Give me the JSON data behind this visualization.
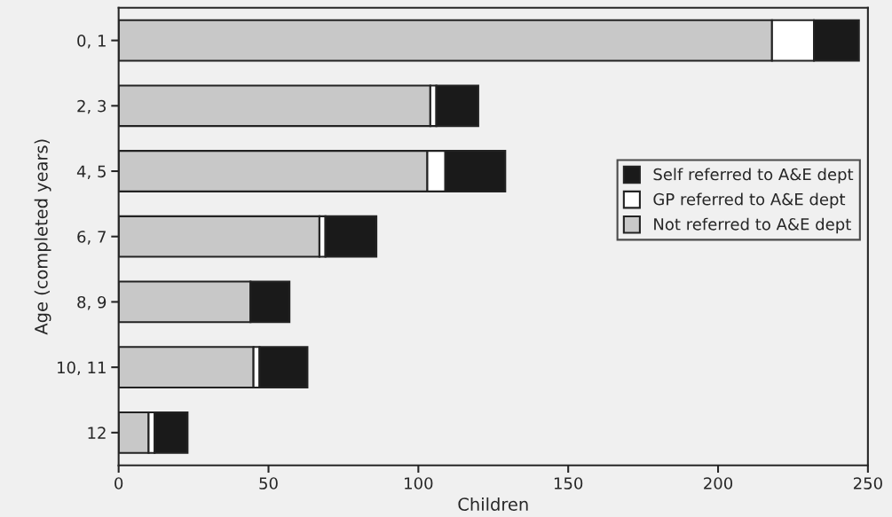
{
  "chart_data": {
    "type": "bar",
    "orientation": "horizontal",
    "stacked": true,
    "xlabel": "Children",
    "ylabel": "Age (completed years)",
    "categories": [
      "0, 1",
      "2, 3",
      "4, 5",
      "6, 7",
      "8, 9",
      "10, 11",
      "12"
    ],
    "series": [
      {
        "name": "Not referred to A&E dept",
        "color": "#c8c8c8",
        "values": [
          218,
          104,
          103,
          67,
          44,
          45,
          10
        ]
      },
      {
        "name": "GP referred to A&E dept",
        "color": "#ffffff",
        "values": [
          14,
          2,
          6,
          2,
          0,
          2,
          2
        ]
      },
      {
        "name": "Self referred to A&E dept",
        "color": "#1a1a1a",
        "values": [
          15,
          14,
          20,
          17,
          13,
          16,
          11
        ]
      }
    ],
    "xlim": [
      0,
      250
    ],
    "xticks": [
      0,
      50,
      100,
      150,
      200,
      250
    ],
    "legend": "right",
    "grid": false
  }
}
